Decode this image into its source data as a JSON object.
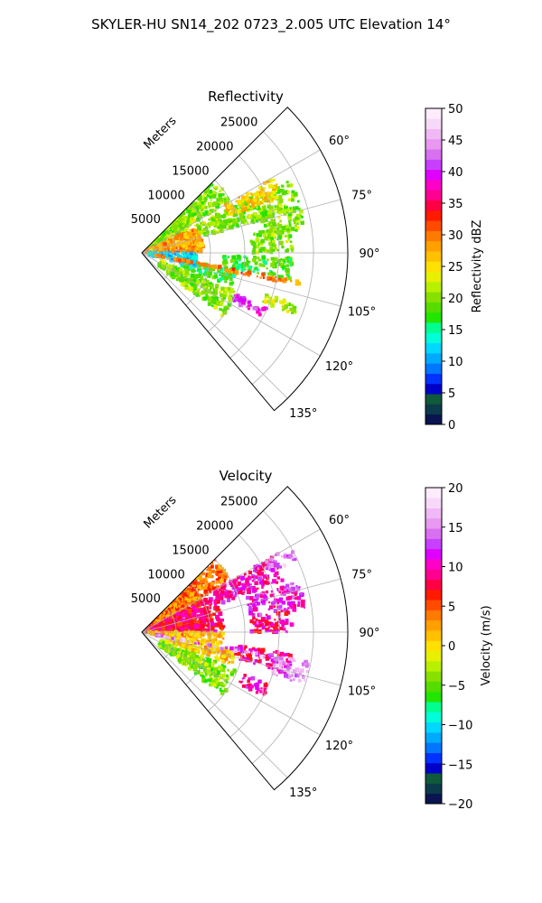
{
  "figure": {
    "suptitle": "SKYLER-HU  SN14_202  0723_2.005 UTC Elevation 14°"
  },
  "chart_data": [
    {
      "type": "polar-sector",
      "title": "Reflectivity",
      "radial_label": "Meters",
      "r_range": [
        0,
        30000
      ],
      "r_ticks": [
        5000,
        10000,
        15000,
        20000,
        25000
      ],
      "r_tick_labels": [
        "5000",
        "10000",
        "15000",
        "20000",
        "25000"
      ],
      "theta_range_deg": [
        45,
        140
      ],
      "theta_ticks_deg": [
        60,
        75,
        90,
        105,
        120,
        135
      ],
      "theta_tick_labels": [
        "60°",
        "75°",
        "90°",
        "105°",
        "120°",
        "135°"
      ],
      "grid": true,
      "colorbar": {
        "label": "Reflectivity dBZ",
        "range": [
          0,
          50
        ],
        "ticks": [
          0,
          5,
          10,
          15,
          20,
          25,
          30,
          35,
          40,
          45,
          50
        ],
        "tick_labels": [
          "0",
          "5",
          "10",
          "15",
          "20",
          "25",
          "30",
          "35",
          "40",
          "45",
          "50"
        ],
        "colors": [
          "#0a1450",
          "#0b3a4a",
          "#0f5a3a",
          "#0000c8",
          "#0033ff",
          "#0077ff",
          "#00aaff",
          "#00d8ff",
          "#00ffd8",
          "#00ff90",
          "#22e600",
          "#55dd00",
          "#88e000",
          "#b8f000",
          "#e8f000",
          "#ffe000",
          "#ffc000",
          "#ffa000",
          "#ff7a00",
          "#ff4a00",
          "#ff1a00",
          "#ff0044",
          "#ff0090",
          "#ff00c8",
          "#e000ff",
          "#c840ff",
          "#d870f0",
          "#e898f0",
          "#f0b8f4",
          "#f8d8f8",
          "#fcecfc"
        ]
      },
      "echo_regions": [
        {
          "az_deg": [
            50,
            63
          ],
          "r": [
            500,
            9000
          ],
          "value": 22
        },
        {
          "az_deg": [
            45,
            60
          ],
          "r": [
            500,
            15000
          ],
          "value": 20
        },
        {
          "az_deg": [
            65,
            90
          ],
          "r": [
            500,
            9000
          ],
          "value": 28
        },
        {
          "az_deg": [
            63,
            75
          ],
          "r": [
            9000,
            24000
          ],
          "value": 20
        },
        {
          "az_deg": [
            60,
            68
          ],
          "r": [
            14000,
            22000
          ],
          "value": 26
        },
        {
          "az_deg": [
            72,
            82
          ],
          "r": [
            18000,
            24000
          ],
          "value": 20
        },
        {
          "az_deg": [
            80,
            90
          ],
          "r": [
            16000,
            22000
          ],
          "value": 20
        },
        {
          "az_deg": [
            92,
            100
          ],
          "r": [
            12000,
            22000
          ],
          "value": 18
        },
        {
          "az_deg": [
            100,
            110
          ],
          "r": [
            6000,
            14000
          ],
          "value": 17
        },
        {
          "az_deg": [
            112,
            128
          ],
          "r": [
            3000,
            15000
          ],
          "value": 20
        },
        {
          "az_deg": [
            90,
            104
          ],
          "r": [
            1000,
            8000
          ],
          "value": 12
        },
        {
          "az_deg": [
            114,
            118
          ],
          "r": [
            15000,
            20000
          ],
          "value": 40
        },
        {
          "az_deg": [
            108,
            112
          ],
          "r": [
            19000,
            24000
          ],
          "value": 22
        },
        {
          "az_deg": [
            100,
            102
          ],
          "r": [
            2000,
            24000
          ],
          "value": 30
        }
      ]
    },
    {
      "type": "polar-sector",
      "title": "Velocity",
      "radial_label": "Meters",
      "r_range": [
        0,
        30000
      ],
      "r_ticks": [
        5000,
        10000,
        15000,
        20000,
        25000
      ],
      "r_tick_labels": [
        "5000",
        "10000",
        "15000",
        "20000",
        "25000"
      ],
      "theta_range_deg": [
        45,
        140
      ],
      "theta_ticks_deg": [
        60,
        75,
        90,
        105,
        120,
        135
      ],
      "theta_tick_labels": [
        "60°",
        "75°",
        "90°",
        "105°",
        "120°",
        "135°"
      ],
      "grid": true,
      "colorbar": {
        "label": "Velocity (m/s)",
        "range": [
          -20,
          20
        ],
        "ticks": [
          -20,
          -15,
          -10,
          -5,
          0,
          5,
          10,
          15,
          20
        ],
        "tick_labels": [
          "−20",
          "−15",
          "−10",
          "−5",
          "0",
          "5",
          "10",
          "15",
          "20"
        ],
        "colors": [
          "#0a1450",
          "#0b3a4a",
          "#0f5a3a",
          "#0000c8",
          "#0033ff",
          "#0077ff",
          "#00aaff",
          "#00d8ff",
          "#00ffd8",
          "#00ff90",
          "#22e600",
          "#55dd00",
          "#88e000",
          "#b8f000",
          "#e8f000",
          "#ffe000",
          "#ffc000",
          "#ffa000",
          "#ff7a00",
          "#ff4a00",
          "#ff1a00",
          "#ff0044",
          "#ff0090",
          "#ff00c8",
          "#e000ff",
          "#c840ff",
          "#d870f0",
          "#e898f0",
          "#f0b8f4",
          "#f8d8f8",
          "#fcecfc"
        ]
      },
      "echo_regions": [
        {
          "az_deg": [
            50,
            63
          ],
          "r": [
            500,
            10000
          ],
          "value": 6
        },
        {
          "az_deg": [
            45,
            60
          ],
          "r": [
            500,
            15000
          ],
          "value": 4
        },
        {
          "az_deg": [
            63,
            90
          ],
          "r": [
            500,
            12000
          ],
          "value": 8
        },
        {
          "az_deg": [
            60,
            70
          ],
          "r": [
            12000,
            22000
          ],
          "value": 10
        },
        {
          "az_deg": [
            60,
            65
          ],
          "r": [
            20000,
            25000
          ],
          "value": 15
        },
        {
          "az_deg": [
            72,
            82
          ],
          "r": [
            16000,
            24000
          ],
          "value": 11
        },
        {
          "az_deg": [
            82,
            90
          ],
          "r": [
            16000,
            22000
          ],
          "value": 9
        },
        {
          "az_deg": [
            90,
            100
          ],
          "r": [
            1000,
            12000
          ],
          "value": 2
        },
        {
          "az_deg": [
            100,
            110
          ],
          "r": [
            4000,
            14000
          ],
          "value": 1
        },
        {
          "az_deg": [
            112,
            128
          ],
          "r": [
            3000,
            15000
          ],
          "value": -4
        },
        {
          "az_deg": [
            98,
            106
          ],
          "r": [
            14000,
            22000
          ],
          "value": 9
        },
        {
          "az_deg": [
            100,
            108
          ],
          "r": [
            20000,
            25000
          ],
          "value": 15
        },
        {
          "az_deg": [
            100,
            102
          ],
          "r": [
            2000,
            22000
          ],
          "value": 15
        },
        {
          "az_deg": [
            112,
            118
          ],
          "r": [
            16000,
            20000
          ],
          "value": 10
        }
      ]
    }
  ]
}
